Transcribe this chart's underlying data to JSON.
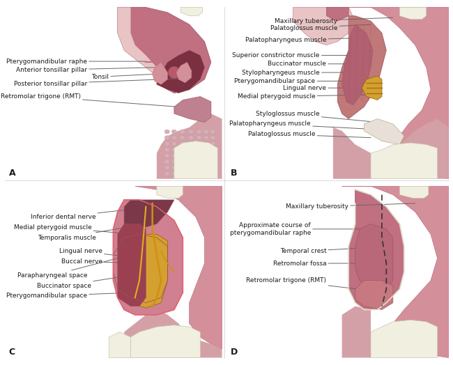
{
  "bg_color": "#ffffff",
  "panel_bg": "#f5e8e8",
  "text_color": "#1a1a1a",
  "line_color": "#666666",
  "label_fontsize": 6.5,
  "panel_label_fontsize": 9,
  "flesh_very_light": "#e8c4c4",
  "flesh_light": "#d4909a",
  "flesh_medium": "#c07080",
  "flesh_dark": "#9a5060",
  "flesh_darker": "#7a3848",
  "pink_mucosa": "#d4a0a8",
  "dark_red": "#8B3040",
  "tooth_color": "#f0efe0",
  "tooth_shadow": "#d8d8c0",
  "gold_color": "#d4a030",
  "gold_light": "#e8c060",
  "white_tissue": "#e8e0d8",
  "gum_pink": "#c89098"
}
